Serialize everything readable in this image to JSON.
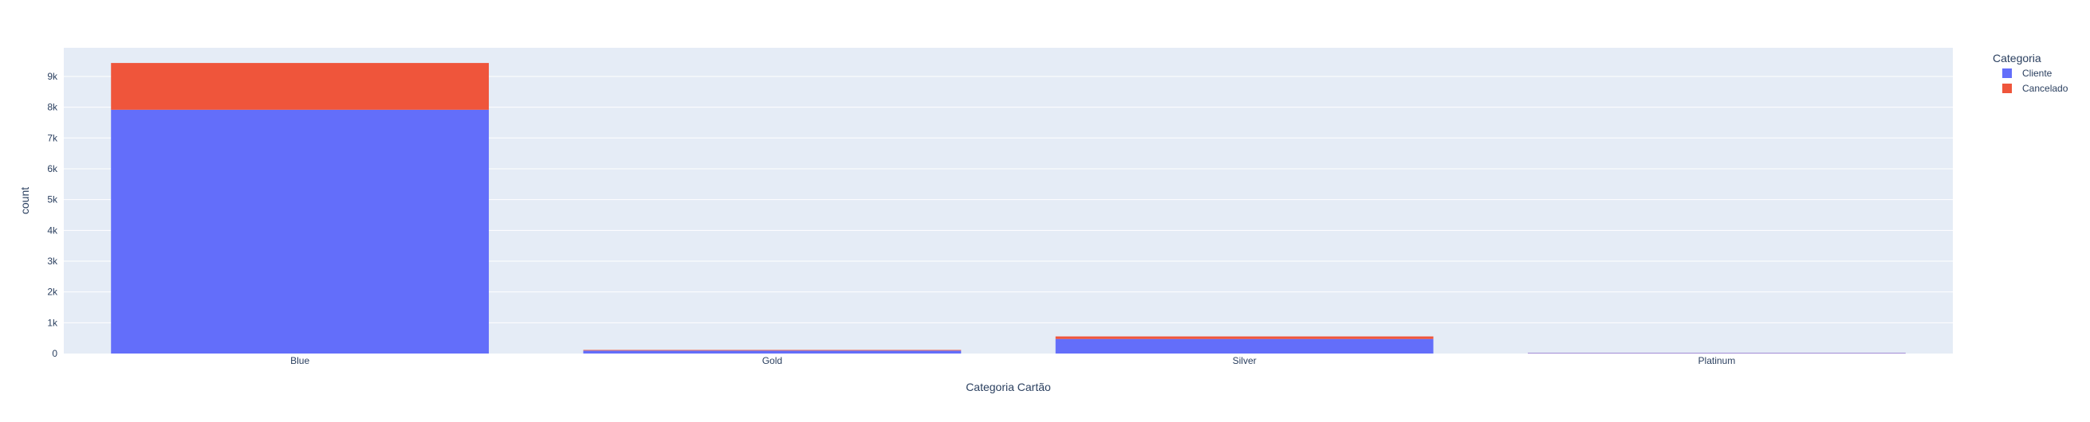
{
  "chart_data": {
    "type": "bar",
    "barmode": "stack",
    "categories": [
      "Blue",
      "Gold",
      "Silver",
      "Platinum"
    ],
    "series": [
      {
        "name": "Cliente",
        "values": [
          7917,
          95,
          473,
          15
        ],
        "color": "#636efa"
      },
      {
        "name": "Cancelado",
        "values": [
          1519,
          21,
          82,
          5
        ],
        "color": "#ef553b"
      }
    ],
    "xlabel": "Categoria Cartão",
    "ylabel": "count",
    "ylim": [
      0,
      9930
    ],
    "yticks": [
      {
        "value": 0,
        "label": "0"
      },
      {
        "value": 1000,
        "label": "1k"
      },
      {
        "value": 2000,
        "label": "2k"
      },
      {
        "value": 3000,
        "label": "3k"
      },
      {
        "value": 4000,
        "label": "4k"
      },
      {
        "value": 5000,
        "label": "5k"
      },
      {
        "value": 6000,
        "label": "6k"
      },
      {
        "value": 7000,
        "label": "7k"
      },
      {
        "value": 8000,
        "label": "8k"
      },
      {
        "value": 9000,
        "label": "9k"
      }
    ],
    "grid": true,
    "legend": {
      "title": "Categoria",
      "position": "top-right"
    },
    "colors": {
      "plot_background": "#e5ecf6",
      "grid": "#ffffff",
      "text": "#2a3f5f"
    }
  }
}
